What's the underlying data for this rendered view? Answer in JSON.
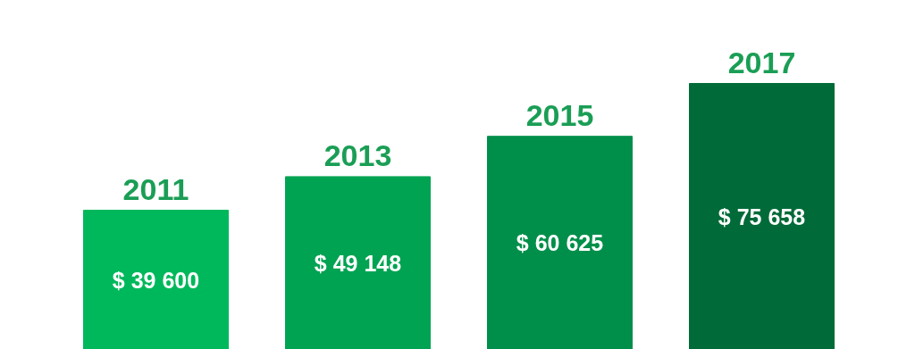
{
  "chart_data": {
    "type": "bar",
    "categories": [
      "2011",
      "2013",
      "2015",
      "2017"
    ],
    "values": [
      39600,
      49148,
      60625,
      75658
    ],
    "colors": [
      "#00b85c",
      "#00a352",
      "#008f4a",
      "#006b38"
    ],
    "value_labels": [
      "$ 39 600",
      "$ 49 148",
      "$ 60 625",
      "$ 75 658"
    ]
  }
}
